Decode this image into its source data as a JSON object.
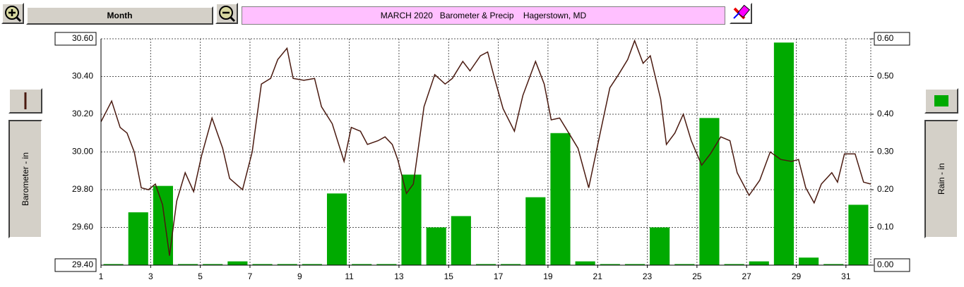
{
  "toolbar": {
    "period": "Month"
  },
  "chart_data": {
    "type": "combo",
    "title": "MARCH 2020   Barometer & Precip    Hagerstown, MD",
    "xlim": [
      1,
      32
    ],
    "xticks": [
      1,
      3,
      5,
      7,
      9,
      11,
      13,
      15,
      17,
      19,
      21,
      23,
      25,
      27,
      29,
      31
    ],
    "ylim": [
      29.4,
      30.6
    ],
    "yticks": [
      {
        "value": 29.4,
        "label": "29.40"
      },
      {
        "value": 29.6,
        "label": "29.60"
      },
      {
        "value": 29.8,
        "label": "29.80"
      },
      {
        "value": 30.0,
        "label": "30.00"
      },
      {
        "value": 30.2,
        "label": "30.20"
      },
      {
        "value": 30.4,
        "label": "30.40"
      },
      {
        "value": 30.6,
        "label": "30.60"
      }
    ],
    "y2lim": [
      0,
      0.6
    ],
    "y2ticks": [
      {
        "value": 0,
        "label": "0.00"
      },
      {
        "value": 0.1,
        "label": "0.10"
      },
      {
        "value": 0.2,
        "label": "0.20"
      },
      {
        "value": 0.3,
        "label": "0.30"
      },
      {
        "value": 0.4,
        "label": "0.40"
      },
      {
        "value": 0.5,
        "label": "0.50"
      },
      {
        "value": 0.6,
        "label": "0.60"
      }
    ],
    "grid": true,
    "series": [
      {
        "name": "Barometer - in",
        "type": "line",
        "color": "#4a1a10",
        "x": [
          1.0,
          1.43,
          1.77,
          2.05,
          2.34,
          2.62,
          2.91,
          3.19,
          3.48,
          3.76,
          4.05,
          4.39,
          4.73,
          5.05,
          5.47,
          5.9,
          6.18,
          6.7,
          7.09,
          7.46,
          7.83,
          8.12,
          8.49,
          8.74,
          9.17,
          9.6,
          9.88,
          10.31,
          10.79,
          11.08,
          11.45,
          11.73,
          12.16,
          12.44,
          12.73,
          12.95,
          13.3,
          13.58,
          14.01,
          14.44,
          14.86,
          15.15,
          15.57,
          15.86,
          16.28,
          16.57,
          16.85,
          17.19,
          17.65,
          17.99,
          18.5,
          18.85,
          19.13,
          19.47,
          19.84,
          20.21,
          20.64,
          21.12,
          21.49,
          21.84,
          22.21,
          22.49,
          22.83,
          23.12,
          23.54,
          23.77,
          24.11,
          24.45,
          24.77,
          25.19,
          25.54,
          25.96,
          26.33,
          26.62,
          27.1,
          27.53,
          27.95,
          28.38,
          28.81,
          29.09,
          29.38,
          29.72,
          30.01,
          30.43,
          30.66,
          30.94,
          31.37,
          31.71,
          32.0
        ],
        "values": [
          30.16,
          30.27,
          30.13,
          30.1,
          30.0,
          29.81,
          29.8,
          29.83,
          29.72,
          29.45,
          29.74,
          29.89,
          29.79,
          29.98,
          30.18,
          30.02,
          29.86,
          29.8,
          30.0,
          30.36,
          30.39,
          30.49,
          30.55,
          30.39,
          30.38,
          30.39,
          30.24,
          30.15,
          29.95,
          30.13,
          30.11,
          30.04,
          30.06,
          30.08,
          30.04,
          29.96,
          29.78,
          29.83,
          30.24,
          30.41,
          30.36,
          30.39,
          30.48,
          30.43,
          30.51,
          30.53,
          30.39,
          30.23,
          30.11,
          30.3,
          30.48,
          30.36,
          30.17,
          30.18,
          30.1,
          30.02,
          29.81,
          30.11,
          30.34,
          30.41,
          30.49,
          30.59,
          30.47,
          30.51,
          30.28,
          30.04,
          30.1,
          30.2,
          30.06,
          29.93,
          29.99,
          30.08,
          30.06,
          29.89,
          29.77,
          29.85,
          30.0,
          29.96,
          29.95,
          29.96,
          29.81,
          29.73,
          29.83,
          29.89,
          29.84,
          29.99,
          29.99,
          29.84,
          29.83
        ]
      },
      {
        "name": "Rain - in",
        "type": "bar",
        "axis": "y2",
        "color": "#00aa00",
        "x": [
          1,
          2,
          3,
          4,
          5,
          6,
          7,
          8,
          9,
          10,
          11,
          12,
          13,
          14,
          15,
          16,
          17,
          18,
          19,
          20,
          21,
          22,
          23,
          24,
          25,
          26,
          27,
          28,
          29,
          30,
          31
        ],
        "values": [
          0,
          0.14,
          0.21,
          0,
          0,
          0.01,
          0,
          0,
          0,
          0.19,
          0,
          0,
          0.24,
          0.1,
          0.13,
          0,
          0,
          0.18,
          0.35,
          0.01,
          0,
          0,
          0.1,
          0,
          0.39,
          0,
          0.01,
          0.59,
          0.02,
          0,
          0.16
        ]
      }
    ]
  }
}
